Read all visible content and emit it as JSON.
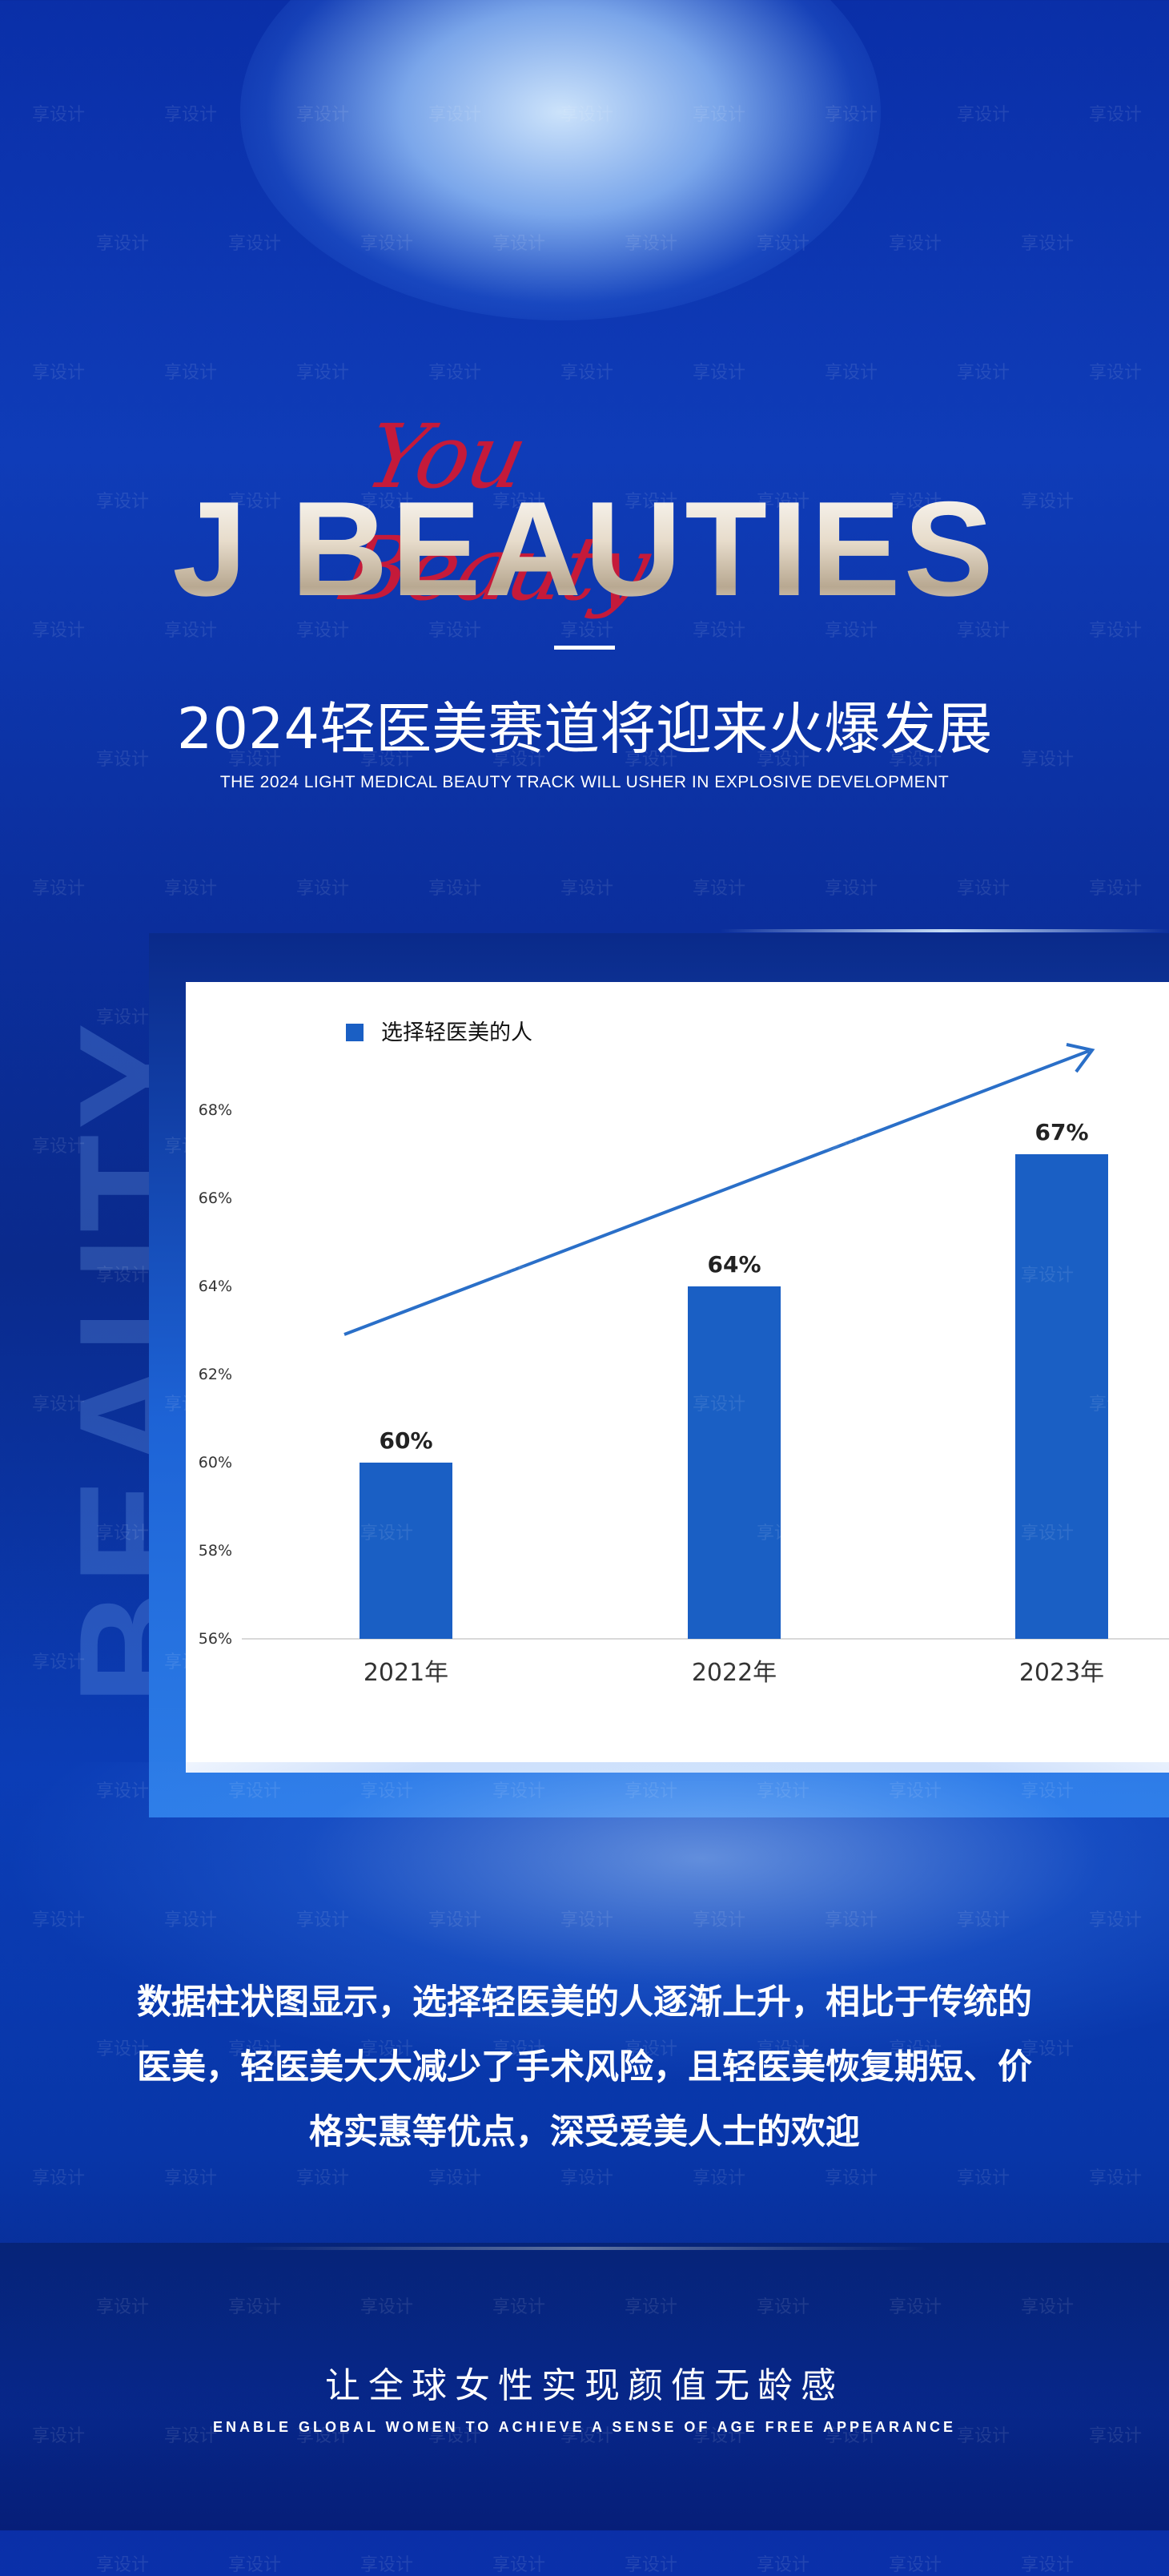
{
  "brand": {
    "script": "You Beauty",
    "logo": "J BEAUTIES",
    "side_word": "BEAUTY"
  },
  "headline": "2024轻医美赛道将迎来火爆发展",
  "subheadline": "THE 2024 LIGHT MEDICAL BEAUTY TRACK WILL USHER IN EXPLOSIVE DEVELOPMENT",
  "chart_data": {
    "type": "bar",
    "categories": [
      "2021年",
      "2022年",
      "2023年"
    ],
    "series": [
      {
        "name": "选择轻医美的人",
        "values": [
          60,
          64,
          67
        ]
      }
    ],
    "data_labels": [
      "60%",
      "64%",
      "67%"
    ],
    "ylim": [
      56,
      68
    ],
    "yticks": [
      "56%",
      "58%",
      "60%",
      "62%",
      "64%",
      "66%",
      "68%"
    ],
    "ytick_values": [
      56,
      58,
      60,
      62,
      64,
      66,
      68
    ],
    "grid": false,
    "legend": "top-left",
    "bar_color": "#1a5fc4",
    "trend_arrow": true
  },
  "paragraph": [
    "数据柱状图显示，选择轻医美的人逐渐上升，相比于传统的",
    "医美，轻医美大大减少了手术风险，且轻医美恢复期短、价",
    "格实惠等优点，深受爱美人士的欢迎"
  ],
  "slogan": "让全球女性实现颜值无龄感",
  "slogan_en": "ENABLE GLOBAL WOMEN TO ACHIEVE A SENSE OF AGE FREE APPEARANCE",
  "watermark": "享设计",
  "colors": {
    "accent": "#1a5fc4",
    "script": "#c51a3a",
    "background": "#0b2f9e"
  }
}
